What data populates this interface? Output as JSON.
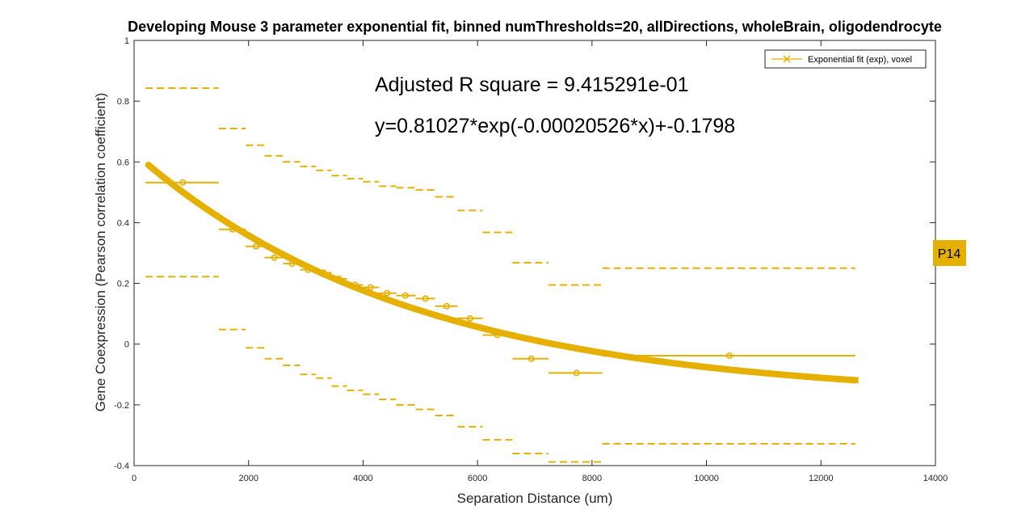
{
  "chart_data": {
    "type": "line",
    "title": "Developing Mouse 3 parameter exponential fit, binned numThresholds=20, allDirections, wholeBrain, oligodendrocyte",
    "xlabel": "Separation Distance (um)",
    "ylabel": "Gene Coexpression (Pearson correlation coefficient)",
    "xlim": [
      0,
      14000
    ],
    "ylim": [
      -0.4,
      1
    ],
    "xticks": [
      0,
      2000,
      4000,
      6000,
      8000,
      10000,
      12000,
      14000
    ],
    "xtick_labels": [
      "0",
      "2000",
      "4000",
      "6000",
      "8000",
      "10000",
      "12000",
      "14000"
    ],
    "yticks": [
      -0.4,
      -0.2,
      0,
      0.2,
      0.4,
      0.6,
      0.8,
      1
    ],
    "ytick_labels": [
      "-0.4",
      "-0.2",
      "0",
      "0.2",
      "0.4",
      "0.6",
      "0.8",
      "1"
    ],
    "grid": false,
    "legend_position": "top-right",
    "color": "#E6B000",
    "annotations": [
      "Adjusted R square = 9.415291e-01",
      "y=0.81027*exp(-0.00020526*x)+-0.1798"
    ],
    "tag": "P14",
    "fit": {
      "name": "Exponential fit (exp), voxel",
      "a": 0.81027,
      "b": -0.00020526,
      "c": -0.1798,
      "x_range": [
        250,
        12600
      ]
    },
    "bins": [
      {
        "x": 850,
        "y": 0.532,
        "xmin": 200,
        "xmax": 1480,
        "upper": 0.843,
        "lower": 0.222
      },
      {
        "x": 1720,
        "y": 0.378,
        "xmin": 1480,
        "xmax": 1950,
        "upper": 0.71,
        "lower": 0.048
      },
      {
        "x": 2130,
        "y": 0.322,
        "xmin": 1950,
        "xmax": 2280,
        "upper": 0.655,
        "lower": -0.012
      },
      {
        "x": 2450,
        "y": 0.285,
        "xmin": 2280,
        "xmax": 2600,
        "upper": 0.62,
        "lower": -0.048
      },
      {
        "x": 2760,
        "y": 0.265,
        "xmin": 2600,
        "xmax": 2900,
        "upper": 0.6,
        "lower": -0.07
      },
      {
        "x": 3040,
        "y": 0.245,
        "xmin": 2900,
        "xmax": 3180,
        "upper": 0.585,
        "lower": -0.1
      },
      {
        "x": 3310,
        "y": 0.235,
        "xmin": 3180,
        "xmax": 3450,
        "upper": 0.572,
        "lower": -0.112
      },
      {
        "x": 3580,
        "y": 0.215,
        "xmin": 3450,
        "xmax": 3720,
        "upper": 0.555,
        "lower": -0.138
      },
      {
        "x": 3860,
        "y": 0.195,
        "xmin": 3720,
        "xmax": 4000,
        "upper": 0.545,
        "lower": -0.152
      },
      {
        "x": 4130,
        "y": 0.187,
        "xmin": 4000,
        "xmax": 4280,
        "upper": 0.535,
        "lower": -0.165
      },
      {
        "x": 4420,
        "y": 0.168,
        "xmin": 4280,
        "xmax": 4580,
        "upper": 0.52,
        "lower": -0.182
      },
      {
        "x": 4740,
        "y": 0.16,
        "xmin": 4580,
        "xmax": 4920,
        "upper": 0.515,
        "lower": -0.2
      },
      {
        "x": 5090,
        "y": 0.15,
        "xmin": 4920,
        "xmax": 5260,
        "upper": 0.508,
        "lower": -0.215
      },
      {
        "x": 5460,
        "y": 0.125,
        "xmin": 5260,
        "xmax": 5650,
        "upper": 0.485,
        "lower": -0.235
      },
      {
        "x": 5870,
        "y": 0.085,
        "xmin": 5650,
        "xmax": 6090,
        "upper": 0.44,
        "lower": -0.272
      },
      {
        "x": 6350,
        "y": 0.03,
        "xmin": 6090,
        "xmax": 6610,
        "upper": 0.368,
        "lower": -0.315
      },
      {
        "x": 6940,
        "y": -0.048,
        "xmin": 6610,
        "xmax": 7240,
        "upper": 0.268,
        "lower": -0.36
      },
      {
        "x": 7730,
        "y": -0.095,
        "xmin": 7240,
        "xmax": 8180,
        "upper": 0.195,
        "lower": -0.388
      },
      {
        "x": 10400,
        "y": -0.038,
        "xmin": 8180,
        "xmax": 12600,
        "upper": 0.25,
        "lower": -0.328
      }
    ]
  }
}
